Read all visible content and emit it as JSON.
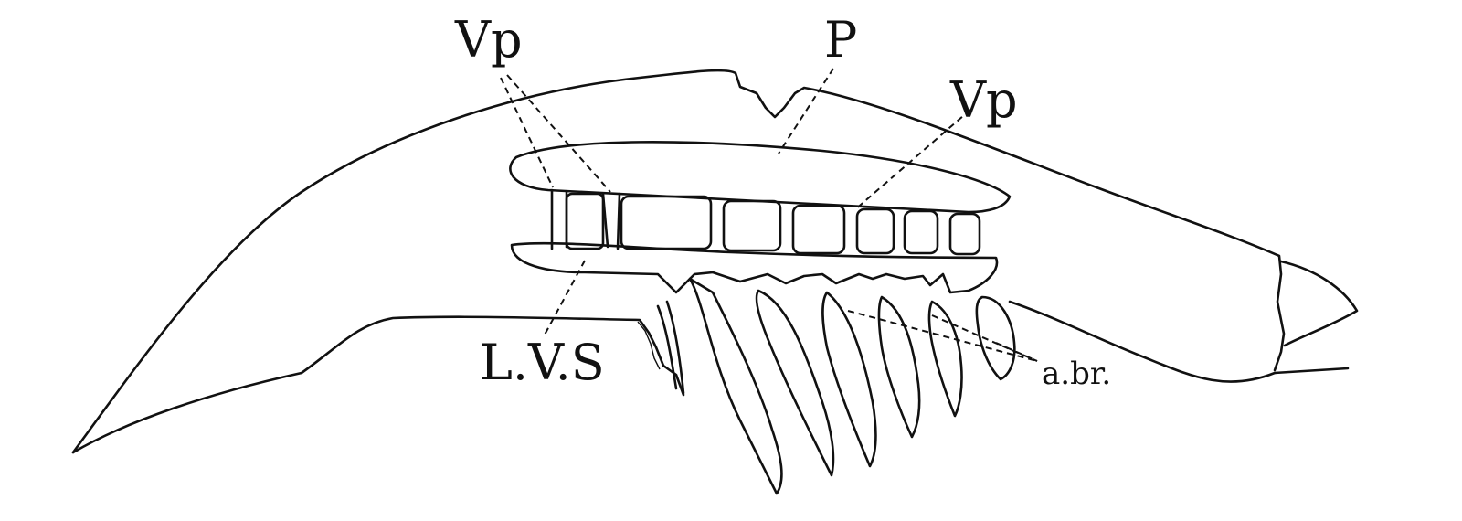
{
  "labels": {
    "vp_left": "Vp",
    "p": "P",
    "vp_right": "Vp",
    "lvs": "L.V.S",
    "abr": "a.br."
  },
  "colors": {
    "ink": "#111111",
    "paper": "#ffffff"
  }
}
